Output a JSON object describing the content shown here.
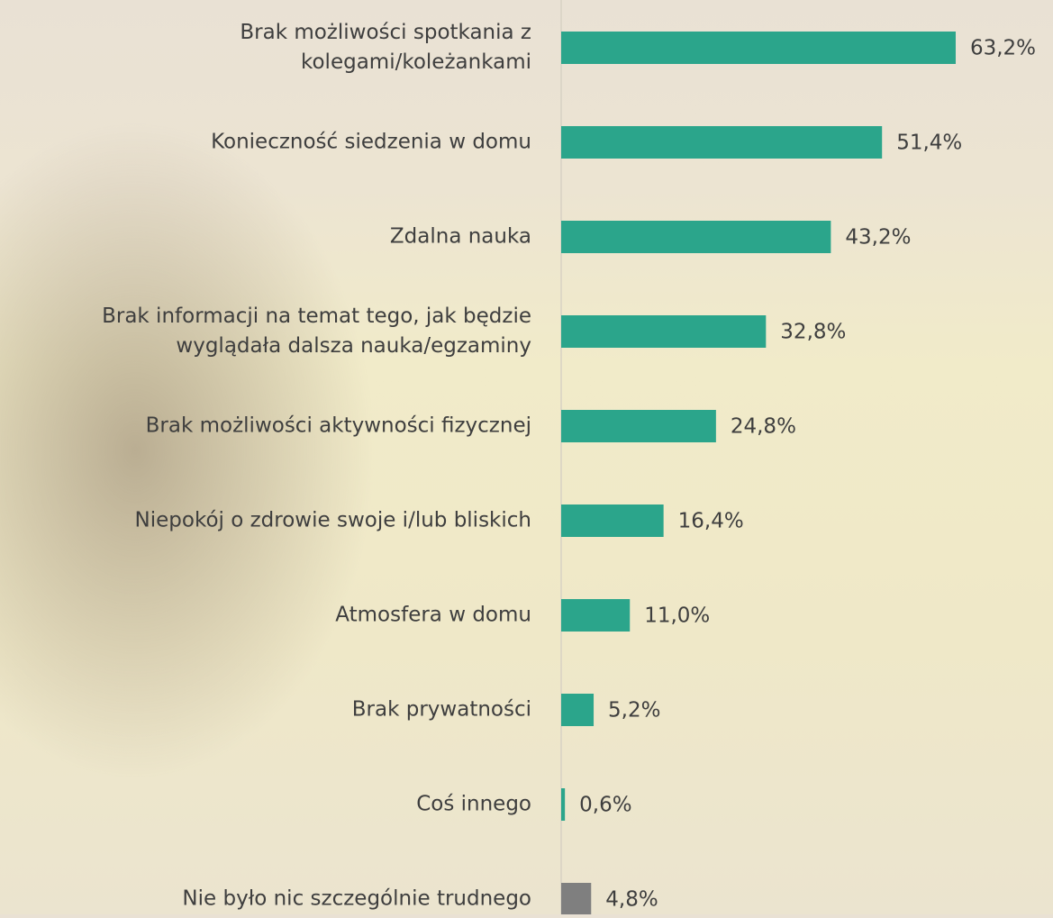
{
  "chart_data": {
    "type": "bar",
    "orientation": "horizontal",
    "categories": [
      "Brak możliwości spotkania z\nkolegami/koleżankami",
      "Konieczność siedzenia w domu",
      "Zdalna nauka",
      "Brak informacji na temat tego, jak będzie\nwyglądała dalsza nauka/egzaminy",
      "Brak możliwości aktywności fizycznej",
      "Niepokój o zdrowie swoje i/lub bliskich",
      "Atmosfera w domu",
      "Brak prywatności",
      "Coś innego",
      "Nie było nic szczególnie trudnego"
    ],
    "values": [
      63.2,
      51.4,
      43.2,
      32.8,
      24.8,
      16.4,
      11.0,
      5.2,
      0.6,
      4.8
    ],
    "value_labels": [
      "63,2%",
      "51,4%",
      "43,2%",
      "32,8%",
      "24,8%",
      "16,4%",
      "11,0%",
      "5,2%",
      "0,6%",
      "4,8%"
    ],
    "colors": [
      "#2ba58b",
      "#2ba58b",
      "#2ba58b",
      "#2ba58b",
      "#2ba58b",
      "#2ba58b",
      "#2ba58b",
      "#2ba58b",
      "#2ba58b",
      "#7f7f7f"
    ]
  }
}
